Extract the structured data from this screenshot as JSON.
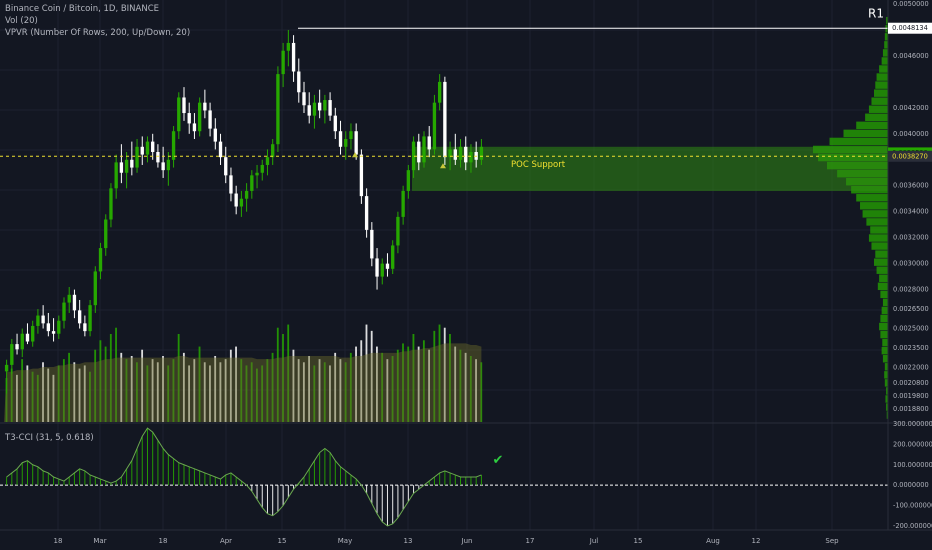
{
  "legend": {
    "title": "Binance Coin / Bitcoin, 1D, BINANCE",
    "vol": "Vol (20)",
    "vpvr": "VPVR (Number Of Rows, 200, Up/Down, 20)",
    "t3cci": "T3-CCI (31, 5, 0.618)"
  },
  "colors": {
    "background": "#131722",
    "up": "#26a800",
    "down": "#ffffff",
    "zone": "#2f8a12",
    "poc": "#f0e030",
    "grid": "#1e2230",
    "axis_text": "#b2b5be"
  },
  "chart_data": [
    {
      "type": "candlestick",
      "name": "price",
      "price_range": [
        0.00178,
        0.005
      ],
      "right_axis_ticks": [
        "0.0050000",
        "0.0048134",
        "0.0046000",
        "0.0042000",
        "0.0040000",
        "0.0038529",
        "0.0038270",
        "0.0036000",
        "0.0034000",
        "0.0032000",
        "0.0030000",
        "0.0028000",
        "0.0026500",
        "0.0025000",
        "0.0023500",
        "0.0022000",
        "0.0020800",
        "0.0019800",
        "0.0018800"
      ],
      "highlighted_price_labels": [
        "0.0038529",
        "0.0038270"
      ],
      "R1_label": "R1",
      "R1_level": 0.0048134,
      "poc_level": 0.003827,
      "support_zone": [
        0.00356,
        0.0039
      ],
      "support_label": "POC Support",
      "x_axis_ticks": [
        "18",
        "Mar",
        "18",
        "Apr",
        "15",
        "May",
        "13",
        "Jun",
        "17",
        "Jul",
        "15",
        "Aug",
        "12",
        "Sep"
      ],
      "candles": [
        {
          "o": 0.00217,
          "h": 0.00226,
          "l": 0.002,
          "c": 0.00222
        },
        {
          "o": 0.00222,
          "h": 0.00242,
          "l": 0.00215,
          "c": 0.00238
        },
        {
          "o": 0.00238,
          "h": 0.00246,
          "l": 0.0023,
          "c": 0.00234
        },
        {
          "o": 0.00234,
          "h": 0.0025,
          "l": 0.00228,
          "c": 0.00246
        },
        {
          "o": 0.00246,
          "h": 0.00254,
          "l": 0.00238,
          "c": 0.0024
        },
        {
          "o": 0.0024,
          "h": 0.00256,
          "l": 0.00236,
          "c": 0.00252
        },
        {
          "o": 0.00252,
          "h": 0.00265,
          "l": 0.00246,
          "c": 0.0026
        },
        {
          "o": 0.0026,
          "h": 0.00268,
          "l": 0.0025,
          "c": 0.00254
        },
        {
          "o": 0.00254,
          "h": 0.00262,
          "l": 0.00244,
          "c": 0.00248
        },
        {
          "o": 0.00248,
          "h": 0.00258,
          "l": 0.0024,
          "c": 0.00246
        },
        {
          "o": 0.00246,
          "h": 0.0026,
          "l": 0.00242,
          "c": 0.00256
        },
        {
          "o": 0.00256,
          "h": 0.00274,
          "l": 0.0025,
          "c": 0.0027
        },
        {
          "o": 0.0027,
          "h": 0.00282,
          "l": 0.00262,
          "c": 0.00276
        },
        {
          "o": 0.00276,
          "h": 0.0028,
          "l": 0.00258,
          "c": 0.00264
        },
        {
          "o": 0.00264,
          "h": 0.00272,
          "l": 0.0025,
          "c": 0.00254
        },
        {
          "o": 0.00254,
          "h": 0.0026,
          "l": 0.00244,
          "c": 0.00248
        },
        {
          "o": 0.00248,
          "h": 0.00272,
          "l": 0.00244,
          "c": 0.00268
        },
        {
          "o": 0.00268,
          "h": 0.00298,
          "l": 0.00262,
          "c": 0.00294
        },
        {
          "o": 0.00294,
          "h": 0.00316,
          "l": 0.00288,
          "c": 0.00312
        },
        {
          "o": 0.00312,
          "h": 0.00338,
          "l": 0.00306,
          "c": 0.00334
        },
        {
          "o": 0.00334,
          "h": 0.00362,
          "l": 0.00328,
          "c": 0.00358
        },
        {
          "o": 0.00358,
          "h": 0.00384,
          "l": 0.0035,
          "c": 0.00378
        },
        {
          "o": 0.00378,
          "h": 0.00392,
          "l": 0.00362,
          "c": 0.0037
        },
        {
          "o": 0.0037,
          "h": 0.00386,
          "l": 0.00358,
          "c": 0.0038
        },
        {
          "o": 0.0038,
          "h": 0.00394,
          "l": 0.00368,
          "c": 0.00374
        },
        {
          "o": 0.00374,
          "h": 0.00396,
          "l": 0.0037,
          "c": 0.0039
        },
        {
          "o": 0.0039,
          "h": 0.00398,
          "l": 0.00376,
          "c": 0.00384
        },
        {
          "o": 0.00384,
          "h": 0.00398,
          "l": 0.00378,
          "c": 0.00394
        },
        {
          "o": 0.00394,
          "h": 0.004,
          "l": 0.0038,
          "c": 0.00386
        },
        {
          "o": 0.00386,
          "h": 0.00392,
          "l": 0.00374,
          "c": 0.00378
        },
        {
          "o": 0.00378,
          "h": 0.0039,
          "l": 0.00366,
          "c": 0.00372
        },
        {
          "o": 0.00372,
          "h": 0.00386,
          "l": 0.0036,
          "c": 0.0038
        },
        {
          "o": 0.0038,
          "h": 0.00406,
          "l": 0.00374,
          "c": 0.00402
        },
        {
          "o": 0.00402,
          "h": 0.00432,
          "l": 0.00396,
          "c": 0.00428
        },
        {
          "o": 0.00428,
          "h": 0.00436,
          "l": 0.0041,
          "c": 0.00416
        },
        {
          "o": 0.00416,
          "h": 0.00424,
          "l": 0.004,
          "c": 0.00408
        },
        {
          "o": 0.00408,
          "h": 0.00416,
          "l": 0.00396,
          "c": 0.00402
        },
        {
          "o": 0.00402,
          "h": 0.00428,
          "l": 0.00398,
          "c": 0.00424
        },
        {
          "o": 0.00424,
          "h": 0.00434,
          "l": 0.00412,
          "c": 0.00418
        },
        {
          "o": 0.00418,
          "h": 0.00424,
          "l": 0.00398,
          "c": 0.00404
        },
        {
          "o": 0.00404,
          "h": 0.00412,
          "l": 0.00388,
          "c": 0.00394
        },
        {
          "o": 0.00394,
          "h": 0.004,
          "l": 0.00376,
          "c": 0.00382
        },
        {
          "o": 0.00382,
          "h": 0.0039,
          "l": 0.00362,
          "c": 0.00368
        },
        {
          "o": 0.00368,
          "h": 0.00374,
          "l": 0.00348,
          "c": 0.00354
        },
        {
          "o": 0.00354,
          "h": 0.0036,
          "l": 0.00338,
          "c": 0.00344
        },
        {
          "o": 0.00344,
          "h": 0.00356,
          "l": 0.00336,
          "c": 0.0035
        },
        {
          "o": 0.0035,
          "h": 0.00362,
          "l": 0.0034,
          "c": 0.00356
        },
        {
          "o": 0.00356,
          "h": 0.00372,
          "l": 0.0035,
          "c": 0.00368
        },
        {
          "o": 0.00368,
          "h": 0.00376,
          "l": 0.00358,
          "c": 0.0037
        },
        {
          "o": 0.0037,
          "h": 0.0038,
          "l": 0.00364,
          "c": 0.00376
        },
        {
          "o": 0.00376,
          "h": 0.00388,
          "l": 0.00368,
          "c": 0.00382
        },
        {
          "o": 0.00382,
          "h": 0.00396,
          "l": 0.00376,
          "c": 0.00392
        },
        {
          "o": 0.00392,
          "h": 0.00452,
          "l": 0.00386,
          "c": 0.00446
        },
        {
          "o": 0.00446,
          "h": 0.0047,
          "l": 0.00436,
          "c": 0.00464
        },
        {
          "o": 0.00464,
          "h": 0.0048,
          "l": 0.00452,
          "c": 0.0047
        },
        {
          "o": 0.0047,
          "h": 0.00476,
          "l": 0.0044,
          "c": 0.00448
        },
        {
          "o": 0.00448,
          "h": 0.00458,
          "l": 0.00424,
          "c": 0.00432
        },
        {
          "o": 0.00432,
          "h": 0.0044,
          "l": 0.00416,
          "c": 0.00422
        },
        {
          "o": 0.00422,
          "h": 0.00432,
          "l": 0.00408,
          "c": 0.00414
        },
        {
          "o": 0.00414,
          "h": 0.0043,
          "l": 0.00404,
          "c": 0.00424
        },
        {
          "o": 0.00424,
          "h": 0.00434,
          "l": 0.00412,
          "c": 0.00418
        },
        {
          "o": 0.00418,
          "h": 0.0043,
          "l": 0.00408,
          "c": 0.00426
        },
        {
          "o": 0.00426,
          "h": 0.00432,
          "l": 0.0041,
          "c": 0.00414
        },
        {
          "o": 0.00414,
          "h": 0.0042,
          "l": 0.00396,
          "c": 0.00402
        },
        {
          "o": 0.00402,
          "h": 0.0041,
          "l": 0.00384,
          "c": 0.0039
        },
        {
          "o": 0.0039,
          "h": 0.00402,
          "l": 0.0038,
          "c": 0.00396
        },
        {
          "o": 0.00396,
          "h": 0.00408,
          "l": 0.00388,
          "c": 0.00402
        },
        {
          "o": 0.00402,
          "h": 0.00408,
          "l": 0.0038,
          "c": 0.00384
        },
        {
          "o": 0.00384,
          "h": 0.00388,
          "l": 0.00346,
          "c": 0.00352
        },
        {
          "o": 0.00352,
          "h": 0.00358,
          "l": 0.0032,
          "c": 0.00326
        },
        {
          "o": 0.00326,
          "h": 0.00332,
          "l": 0.00298,
          "c": 0.00304
        },
        {
          "o": 0.00304,
          "h": 0.00312,
          "l": 0.0028,
          "c": 0.0029
        },
        {
          "o": 0.0029,
          "h": 0.00304,
          "l": 0.00284,
          "c": 0.003
        },
        {
          "o": 0.003,
          "h": 0.00308,
          "l": 0.0029,
          "c": 0.00296
        },
        {
          "o": 0.00296,
          "h": 0.00318,
          "l": 0.00292,
          "c": 0.00314
        },
        {
          "o": 0.00314,
          "h": 0.0034,
          "l": 0.00308,
          "c": 0.00336
        },
        {
          "o": 0.00336,
          "h": 0.0036,
          "l": 0.0033,
          "c": 0.00356
        },
        {
          "o": 0.00356,
          "h": 0.00376,
          "l": 0.0035,
          "c": 0.00372
        },
        {
          "o": 0.00372,
          "h": 0.00398,
          "l": 0.00366,
          "c": 0.00394
        },
        {
          "o": 0.00394,
          "h": 0.004,
          "l": 0.00372,
          "c": 0.00378
        },
        {
          "o": 0.00378,
          "h": 0.00402,
          "l": 0.00374,
          "c": 0.00398
        },
        {
          "o": 0.00398,
          "h": 0.00406,
          "l": 0.00382,
          "c": 0.00388
        },
        {
          "o": 0.00388,
          "h": 0.0043,
          "l": 0.00384,
          "c": 0.00424
        },
        {
          "o": 0.00424,
          "h": 0.00446,
          "l": 0.00418,
          "c": 0.0044
        },
        {
          "o": 0.0044,
          "h": 0.00444,
          "l": 0.00376,
          "c": 0.00382
        },
        {
          "o": 0.00382,
          "h": 0.00394,
          "l": 0.00372,
          "c": 0.00388
        },
        {
          "o": 0.00388,
          "h": 0.004,
          "l": 0.00376,
          "c": 0.0038
        },
        {
          "o": 0.0038,
          "h": 0.00396,
          "l": 0.00374,
          "c": 0.0039
        },
        {
          "o": 0.0039,
          "h": 0.00398,
          "l": 0.00372,
          "c": 0.00378
        },
        {
          "o": 0.00378,
          "h": 0.00392,
          "l": 0.0037,
          "c": 0.00386
        },
        {
          "o": 0.00386,
          "h": 0.00394,
          "l": 0.00374,
          "c": 0.0038
        },
        {
          "o": 0.0038,
          "h": 0.00396,
          "l": 0.00376,
          "c": 0.0039
        }
      ]
    },
    {
      "type": "bar",
      "name": "volume",
      "values": [
        28,
        34,
        30,
        40,
        36,
        32,
        30,
        38,
        34,
        30,
        36,
        40,
        44,
        38,
        34,
        36,
        32,
        46,
        52,
        48,
        56,
        60,
        44,
        40,
        42,
        38,
        46,
        36,
        40,
        38,
        42,
        36,
        40,
        56,
        44,
        36,
        40,
        48,
        38,
        36,
        42,
        38,
        40,
        46,
        48,
        40,
        36,
        38,
        34,
        36,
        40,
        44,
        60,
        56,
        62,
        46,
        40,
        38,
        42,
        36,
        40,
        38,
        36,
        44,
        40,
        38,
        44,
        48,
        52,
        62,
        58,
        48,
        44,
        40,
        42,
        46,
        50,
        48,
        56,
        48,
        52,
        46,
        58,
        62,
        60,
        56,
        48,
        46,
        44,
        42,
        40,
        38
      ],
      "moving_average": [
        32,
        32,
        33,
        33,
        33,
        34,
        34,
        35,
        35,
        35,
        36,
        36,
        37,
        37,
        37,
        38,
        38,
        38,
        39,
        40,
        40,
        41,
        41,
        41,
        41,
        41,
        41,
        41,
        41,
        41,
        41,
        41,
        41,
        42,
        42,
        41,
        41,
        41,
        41,
        41,
        41,
        41,
        41,
        41,
        41,
        41,
        41,
        41,
        40,
        40,
        40,
        40,
        41,
        41,
        42,
        42,
        42,
        42,
        42,
        42,
        42,
        42,
        42,
        42,
        41,
        41,
        41,
        42,
        42,
        43,
        44,
        44,
        44,
        44,
        44,
        44,
        45,
        45,
        46,
        46,
        47,
        47,
        48,
        49,
        50,
        50,
        50,
        50,
        50,
        49,
        49,
        48
      ]
    },
    {
      "type": "bar",
      "name": "t3cci",
      "ylim": [
        -220,
        300
      ],
      "y_axis_ticks": [
        "300.0000000",
        "200.0000000",
        "100.0000000",
        "0.0000000",
        "-100.0000000",
        "-200.0000000"
      ],
      "values": [
        40,
        60,
        80,
        110,
        120,
        100,
        90,
        70,
        60,
        40,
        30,
        20,
        40,
        60,
        80,
        70,
        50,
        40,
        30,
        20,
        10,
        20,
        40,
        80,
        120,
        180,
        240,
        280,
        260,
        220,
        180,
        150,
        130,
        110,
        100,
        90,
        80,
        70,
        60,
        50,
        40,
        30,
        50,
        60,
        40,
        20,
        0,
        -30,
        -70,
        -110,
        -140,
        -150,
        -130,
        -100,
        -60,
        -20,
        10,
        40,
        80,
        120,
        160,
        180,
        160,
        120,
        90,
        70,
        50,
        30,
        0,
        -40,
        -90,
        -140,
        -180,
        -200,
        -190,
        -160,
        -120,
        -80,
        -40,
        -20,
        0,
        20,
        40,
        60,
        70,
        60,
        50,
        40,
        40,
        40,
        40,
        50
      ],
      "checkmark": "✔"
    },
    {
      "type": "bar",
      "name": "volume_profile",
      "orientation": "horizontal",
      "price_range": [
        0.0018,
        0.0049
      ],
      "values": [
        2,
        3,
        4,
        3,
        5,
        6,
        5,
        8,
        10,
        9,
        12,
        14,
        12,
        10,
        8,
        12,
        16,
        14,
        18,
        22,
        20,
        26,
        30,
        28,
        34,
        40,
        44,
        50,
        58,
        66,
        80,
        96,
        110,
        118,
        92,
        70,
        50,
        36,
        30,
        26,
        22,
        20,
        18,
        14,
        10,
        8,
        6,
        5,
        4,
        3
      ]
    }
  ]
}
